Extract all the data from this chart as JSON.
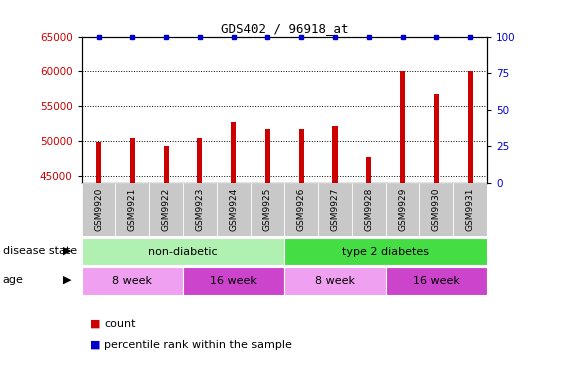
{
  "title": "GDS402 / 96918_at",
  "samples": [
    "GSM9920",
    "GSM9921",
    "GSM9922",
    "GSM9923",
    "GSM9924",
    "GSM9925",
    "GSM9926",
    "GSM9927",
    "GSM9928",
    "GSM9929",
    "GSM9930",
    "GSM9931"
  ],
  "counts": [
    49900,
    50400,
    49300,
    50500,
    52700,
    51700,
    51700,
    52200,
    47700,
    60000,
    56700,
    60000
  ],
  "percentiles": [
    100,
    100,
    100,
    100,
    100,
    100,
    100,
    100,
    100,
    100,
    100,
    100
  ],
  "ylim_left": [
    44000,
    65000
  ],
  "ylim_right": [
    0,
    100
  ],
  "yticks_left": [
    45000,
    50000,
    55000,
    60000,
    65000
  ],
  "yticks_right": [
    0,
    25,
    50,
    75,
    100
  ],
  "bar_color": "#cc0000",
  "dot_color": "#0000cc",
  "disease_state_groups": [
    {
      "label": "non-diabetic",
      "start": 0,
      "end": 6,
      "color": "#b0f0b0"
    },
    {
      "label": "type 2 diabetes",
      "start": 6,
      "end": 12,
      "color": "#44dd44"
    }
  ],
  "age_groups": [
    {
      "label": "8 week",
      "start": 0,
      "end": 3,
      "color": "#f0a0f0"
    },
    {
      "label": "16 week",
      "start": 3,
      "end": 6,
      "color": "#cc44cc"
    },
    {
      "label": "8 week",
      "start": 6,
      "end": 9,
      "color": "#f0a0f0"
    },
    {
      "label": "16 week",
      "start": 9,
      "end": 12,
      "color": "#cc44cc"
    }
  ],
  "disease_state_label": "disease state",
  "age_label": "age",
  "legend_count_label": "count",
  "legend_percentile_label": "percentile rank within the sample",
  "bar_width": 0.15,
  "axis_label_color_left": "#cc0000",
  "axis_label_color_right": "#0000cc",
  "xtick_bg_color": "#c8c8c8",
  "plot_bg": "#ffffff",
  "grid_color": "#000000",
  "spine_color": "#000000"
}
